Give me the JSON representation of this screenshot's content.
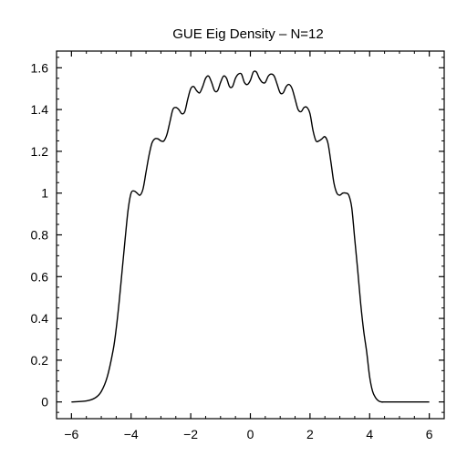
{
  "chart_data": {
    "type": "line",
    "title": "GUE Eig Density – N=12",
    "xlabel": "",
    "ylabel": "",
    "xlim": [
      -6.5,
      6.5
    ],
    "ylim": [
      -0.08,
      1.68
    ],
    "grid": false,
    "x_ticks": [
      -6,
      -4,
      -2,
      0,
      2,
      4,
      6
    ],
    "x_tick_labels": [
      "−6",
      "−4",
      "−2",
      "0",
      "2",
      "4",
      "6"
    ],
    "y_ticks": [
      0,
      0.2,
      0.4,
      0.6,
      0.8,
      1.0,
      1.2,
      1.4,
      1.6
    ],
    "y_tick_labels": [
      "0",
      "0.2",
      "0.4",
      "0.6",
      "0.8",
      "1",
      "1.2",
      "1.4",
      "1.6"
    ],
    "series": [
      {
        "color": "#000000",
        "x": [
          -6.0,
          -5.5,
          -5.2,
          -5.0,
          -4.8,
          -4.6,
          -4.5,
          -4.4,
          -4.3,
          -4.2,
          -4.1,
          -4.0,
          -3.9,
          -3.8,
          -3.7,
          -3.6,
          -3.5,
          -3.4,
          -3.3,
          -3.2,
          -3.1,
          -3.0,
          -2.9,
          -2.8,
          -2.7,
          -2.6,
          -2.5,
          -2.4,
          -2.3,
          -2.2,
          -2.1,
          -2.0,
          -1.9,
          -1.8,
          -1.7,
          -1.6,
          -1.5,
          -1.4,
          -1.3,
          -1.2,
          -1.1,
          -1.0,
          -0.9,
          -0.8,
          -0.7,
          -0.6,
          -0.5,
          -0.4,
          -0.3,
          -0.2,
          -0.1,
          0.0,
          0.1,
          0.2,
          0.3,
          0.4,
          0.5,
          0.6,
          0.7,
          0.8,
          0.9,
          1.0,
          1.1,
          1.2,
          1.3,
          1.4,
          1.5,
          1.6,
          1.7,
          1.8,
          1.9,
          2.0,
          2.1,
          2.2,
          2.3,
          2.4,
          2.5,
          2.6,
          2.7,
          2.8,
          2.9,
          3.0,
          3.1,
          3.2,
          3.3,
          3.4,
          3.5,
          3.6,
          3.7,
          3.8,
          3.9,
          4.0,
          4.1,
          4.2,
          4.3,
          4.4,
          4.5,
          4.6,
          4.8,
          5.0,
          5.2,
          5.5,
          6.0
        ],
        "y": [
          0.0,
          0.005,
          0.02,
          0.05,
          0.12,
          0.25,
          0.35,
          0.48,
          0.63,
          0.78,
          0.92,
          1.0,
          1.01,
          1.0,
          0.99,
          1.02,
          1.1,
          1.18,
          1.24,
          1.26,
          1.26,
          1.25,
          1.25,
          1.28,
          1.34,
          1.4,
          1.41,
          1.4,
          1.38,
          1.39,
          1.45,
          1.5,
          1.51,
          1.49,
          1.48,
          1.51,
          1.55,
          1.56,
          1.53,
          1.49,
          1.49,
          1.53,
          1.56,
          1.55,
          1.51,
          1.51,
          1.55,
          1.57,
          1.57,
          1.53,
          1.52,
          1.54,
          1.58,
          1.58,
          1.55,
          1.53,
          1.53,
          1.56,
          1.57,
          1.56,
          1.52,
          1.48,
          1.48,
          1.51,
          1.52,
          1.5,
          1.45,
          1.4,
          1.39,
          1.41,
          1.41,
          1.38,
          1.3,
          1.25,
          1.25,
          1.26,
          1.27,
          1.24,
          1.15,
          1.05,
          1.0,
          0.99,
          1.0,
          1.0,
          0.99,
          0.93,
          0.78,
          0.63,
          0.47,
          0.34,
          0.24,
          0.12,
          0.05,
          0.02,
          0.005,
          0.0,
          0.0,
          0.0,
          0.0,
          0.0,
          0.0,
          0.0,
          0.0
        ]
      }
    ]
  }
}
